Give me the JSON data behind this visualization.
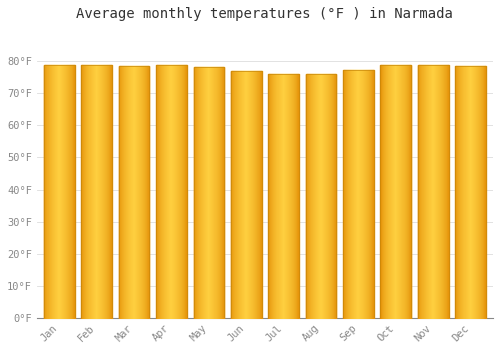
{
  "title": "Average monthly temperatures (°F ) in Narmada",
  "months": [
    "Jan",
    "Feb",
    "Mar",
    "Apr",
    "May",
    "Jun",
    "Jul",
    "Aug",
    "Sep",
    "Oct",
    "Nov",
    "Dec"
  ],
  "values": [
    78.8,
    78.8,
    78.4,
    78.8,
    78.1,
    76.8,
    75.9,
    75.9,
    77.2,
    78.8,
    78.8,
    78.6
  ],
  "ylim": [
    0,
    90
  ],
  "yticks": [
    0,
    10,
    20,
    30,
    40,
    50,
    60,
    70,
    80
  ],
  "bar_color_center": "#FFD040",
  "bar_color_edge": "#E08800",
  "bar_edge_color": "#C8880A",
  "background_color": "#FFFFFF",
  "grid_color": "#DDDDDD",
  "title_fontsize": 10,
  "tick_fontsize": 7.5,
  "tick_color": "#888888",
  "title_color": "#333333"
}
